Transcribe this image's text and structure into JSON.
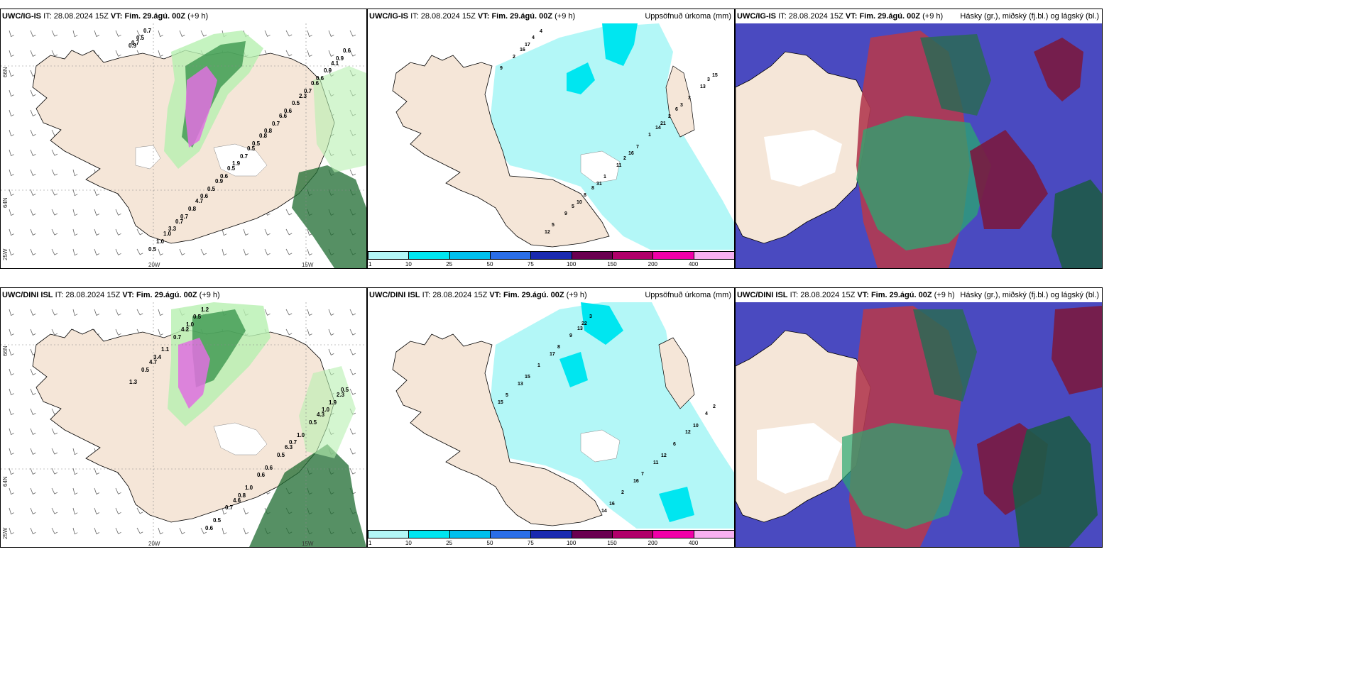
{
  "rows": [
    {
      "model": "UWC/IG-IS",
      "it_label": "IT:",
      "it_value": "28.08.2024 15Z",
      "vt_label": "VT:",
      "vt_value": "Fim. 29.ágú. 00Z",
      "lead": "(+9 h)",
      "panels": {
        "wind": {
          "lat_labels": [
            "66N",
            "64N",
            "25W"
          ],
          "lon_labels": [
            "20W",
            "15W"
          ],
          "precip_values": [
            "0.9",
            "0.8",
            "0.7",
            "0.6",
            "1.9",
            "0.5",
            "0.6",
            "0.6",
            "0.9",
            "0.5",
            "3.3",
            "0.7",
            "0.6",
            "0.5",
            "0.7",
            "0.8",
            "0.9",
            "0.7",
            "1.0",
            "0.5",
            "0.5",
            "0.6",
            "0.8",
            "0.7",
            "0.6",
            "0.5",
            "0.7",
            "6.6",
            "4.7",
            "4.1",
            "0.5",
            "1.0",
            "2.3",
            "0.9",
            "0.7"
          ]
        },
        "precip": {
          "variable": "Uppsöfnuð úrkoma (mm)",
          "values": [
            "17",
            "21",
            "10",
            "15",
            "16",
            "12",
            "3",
            "31",
            "2",
            "1",
            "9",
            "13",
            "11",
            "4",
            "2",
            "8",
            "9",
            "7",
            "5",
            "3",
            "1",
            "16",
            "14",
            "5",
            "3",
            "2",
            "4",
            "6",
            "8"
          ],
          "legend_ticks": [
            "1",
            "10",
            "25",
            "50",
            "75",
            "100",
            "150",
            "200",
            "400"
          ]
        },
        "cloud": {
          "variable": "Hásky (gr.), miðský (fj.bl.) og lágský (bl.)"
        }
      }
    },
    {
      "model": "UWC/DINI ISL",
      "it_label": "IT:",
      "it_value": "28.08.2024 15Z",
      "vt_label": "VT:",
      "vt_value": "Fim. 29.ágú. 00Z",
      "lead": "(+9 h)",
      "panels": {
        "wind": {
          "lat_labels": [
            "66N",
            "64N",
            "25W"
          ],
          "lon_labels": [
            "20W",
            "15W"
          ],
          "precip_values": [
            "1.0",
            "1.0",
            "0.8",
            "3.4",
            "0.7",
            "0.6",
            "0.5",
            "0.6",
            "0.7",
            "0.5",
            "0.7",
            "0.5",
            "0.5",
            "0.5",
            "1.9",
            "1.0",
            "1.1",
            "1.0",
            "0.5",
            "1.3",
            "0.6",
            "4.2",
            "4.3",
            "4.6",
            "4.7",
            "6.3",
            "1.2",
            "2.3"
          ]
        },
        "precip": {
          "variable": "Uppsöfnuð úrkoma (mm)",
          "values": [
            "22",
            "15",
            "16",
            "17",
            "12",
            "14",
            "13",
            "11",
            "9",
            "4",
            "2",
            "1",
            "6",
            "3",
            "5",
            "7",
            "8",
            "10",
            "16",
            "15",
            "12",
            "13",
            "2"
          ],
          "legend_ticks": [
            "1",
            "10",
            "25",
            "50",
            "75",
            "100",
            "150",
            "200",
            "400"
          ]
        },
        "cloud": {
          "variable": "Hásky (gr.), miðský (fj.bl.) og lágský (bl.)"
        }
      }
    }
  ],
  "colors": {
    "land": "#f5e6d8",
    "sea": "#ffffff",
    "precip_light": "#b3f7f7",
    "precip_mid": "#00e6f0",
    "green_light": "#b7f0b0",
    "green_dark": "#1e6b30",
    "magenta": "#e070e0",
    "cloud_high": "#7a1a40",
    "cloud_mid": "#2aa870",
    "cloud_low": "#4a4ac0"
  },
  "legend_colors": [
    "#b3f7f7",
    "#00e6f0",
    "#00c0ee",
    "#2a6ee8",
    "#1a2ab0",
    "#6a0050",
    "#b0006a",
    "#f000a8",
    "#f8b0f0"
  ]
}
